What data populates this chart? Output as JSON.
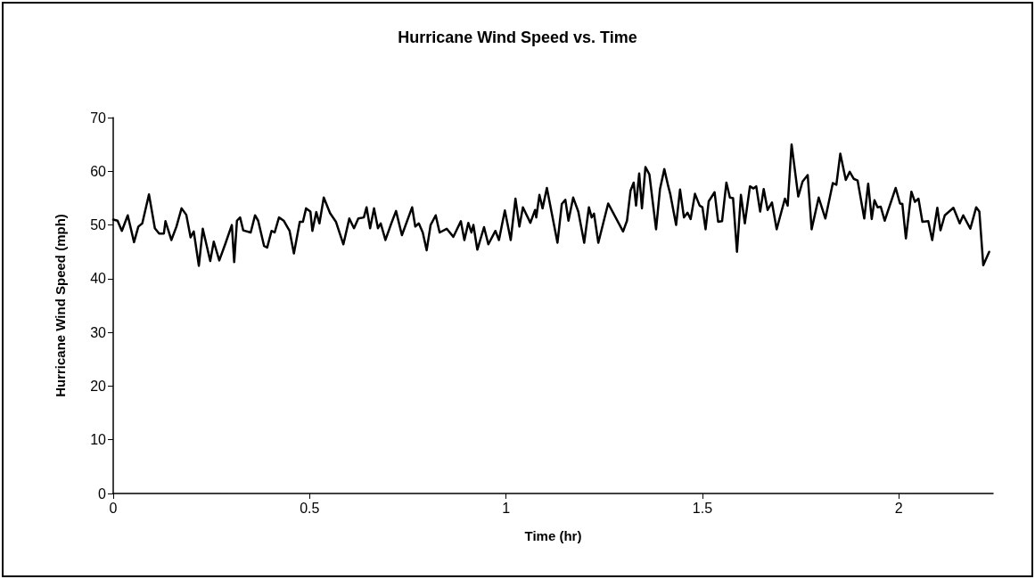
{
  "chart_data": {
    "type": "line",
    "title": "Hurricane Wind Speed vs. Time",
    "xlabel": "Time (hr)",
    "ylabel": "Hurricane Wind Speed (mph)",
    "xlim": [
      0,
      2.24
    ],
    "xticks": [
      0,
      0.5,
      1,
      1.5,
      2
    ],
    "ylim": [
      0,
      70
    ],
    "yticks": [
      0,
      10,
      20,
      30,
      40,
      50,
      60,
      70
    ],
    "grid": false,
    "marker": "none",
    "line_style": "solid",
    "series": [
      {
        "color": "#000000",
        "x": [
          0,
          0.011,
          0.022,
          0.037,
          0.053,
          0.064,
          0.074,
          0.091,
          0.106,
          0.117,
          0.129,
          0.133,
          0.148,
          0.161,
          0.174,
          0.186,
          0.197,
          0.205,
          0.218,
          0.228,
          0.247,
          0.256,
          0.27,
          0.285,
          0.302,
          0.308,
          0.315,
          0.323,
          0.331,
          0.35,
          0.361,
          0.369,
          0.384,
          0.392,
          0.403,
          0.411,
          0.422,
          0.434,
          0.449,
          0.46,
          0.475,
          0.483,
          0.491,
          0.502,
          0.507,
          0.517,
          0.525,
          0.536,
          0.552,
          0.567,
          0.586,
          0.601,
          0.613,
          0.624,
          0.638,
          0.645,
          0.654,
          0.664,
          0.674,
          0.681,
          0.693,
          0.708,
          0.72,
          0.735,
          0.761,
          0.769,
          0.778,
          0.788,
          0.798,
          0.808,
          0.821,
          0.831,
          0.849,
          0.866,
          0.885,
          0.894,
          0.904,
          0.912,
          0.917,
          0.927,
          0.944,
          0.955,
          0.973,
          0.982,
          0.997,
          1.012,
          1.024,
          1.034,
          1.043,
          1.062,
          1.074,
          1.077,
          1.085,
          1.093,
          1.104,
          1.131,
          1.142,
          1.151,
          1.159,
          1.171,
          1.184,
          1.199,
          1.211,
          1.218,
          1.224,
          1.235,
          1.26,
          1.298,
          1.308,
          1.317,
          1.325,
          1.331,
          1.339,
          1.346,
          1.355,
          1.365,
          1.382,
          1.392,
          1.403,
          1.413,
          1.418,
          1.433,
          1.443,
          1.453,
          1.462,
          1.47,
          1.481,
          1.493,
          1.5,
          1.508,
          1.516,
          1.531,
          1.54,
          1.55,
          1.561,
          1.57,
          1.578,
          1.588,
          1.598,
          1.608,
          1.621,
          1.63,
          1.637,
          1.647,
          1.656,
          1.666,
          1.677,
          1.689,
          1.71,
          1.717,
          1.727,
          1.744,
          1.755,
          1.768,
          1.778,
          1.796,
          1.813,
          1.832,
          1.841,
          1.851,
          1.865,
          1.875,
          1.885,
          1.895,
          1.912,
          1.922,
          1.931,
          1.938,
          1.946,
          1.954,
          1.964,
          1.992,
          2.003,
          2.009,
          2.018,
          2.032,
          2.041,
          2.05,
          2.06,
          2.075,
          2.085,
          2.098,
          2.106,
          2.117,
          2.139,
          2.155,
          2.164,
          2.182,
          2.197,
          2.205,
          2.215,
          2.23
        ],
        "values": [
          51,
          50.8,
          48.9,
          51.8,
          46.8,
          49.7,
          50.3,
          55.7,
          49.4,
          48.4,
          48.4,
          50.7,
          47.2,
          49.7,
          53.1,
          51.9,
          47.7,
          48.8,
          42.4,
          49.3,
          43.3,
          46.9,
          43.4,
          46.4,
          50,
          43.1,
          50.8,
          51.4,
          49,
          48.6,
          51.8,
          50.8,
          46.1,
          45.8,
          48.9,
          48.6,
          51.4,
          50.8,
          48.9,
          44.7,
          50.6,
          50.6,
          53.1,
          52.5,
          48.9,
          52.4,
          50.3,
          55.1,
          52.2,
          50.6,
          46.4,
          51.2,
          49.4,
          51.2,
          51.4,
          53.3,
          49.4,
          53.1,
          49.4,
          50.3,
          47.2,
          50.3,
          52.6,
          48.1,
          53.3,
          49.7,
          50.3,
          48.6,
          45.3,
          50,
          51.8,
          48.6,
          49.3,
          47.8,
          50.7,
          47.2,
          50.4,
          48.6,
          50,
          45.4,
          49.6,
          46.4,
          48.9,
          47.2,
          52.7,
          47.2,
          54.9,
          49.7,
          53.3,
          50.4,
          52.8,
          51.4,
          55.6,
          53.1,
          56.9,
          46.7,
          53.9,
          54.7,
          50.8,
          55.1,
          52.5,
          46.7,
          53.3,
          51.4,
          52.1,
          46.7,
          54,
          48.8,
          50.8,
          56.4,
          57.9,
          53.6,
          59.6,
          53.1,
          60.8,
          59.4,
          49.2,
          56.7,
          60.4,
          57.2,
          55.8,
          50,
          56.6,
          51.4,
          52.3,
          51.1,
          55.8,
          53.6,
          53.3,
          49.2,
          54.4,
          56.1,
          50.6,
          50.7,
          57.9,
          55.1,
          55,
          45,
          55.6,
          50.3,
          57.2,
          56.8,
          57.2,
          52.5,
          56.7,
          52.8,
          54.2,
          49.2,
          54.9,
          53.6,
          65,
          55.3,
          58.1,
          59.3,
          49.2,
          55.1,
          51.2,
          57.8,
          57.5,
          63.3,
          58.4,
          59.9,
          58.6,
          58.3,
          51.2,
          57.7,
          51.1,
          54.6,
          53.3,
          53.4,
          50.8,
          56.9,
          54,
          53.9,
          47.5,
          56.2,
          54.3,
          54.9,
          50.6,
          50.7,
          47.2,
          53.2,
          49,
          51.8,
          53.2,
          50.3,
          51.8,
          49.3,
          53.3,
          52.5,
          42.5,
          45
        ]
      }
    ]
  }
}
